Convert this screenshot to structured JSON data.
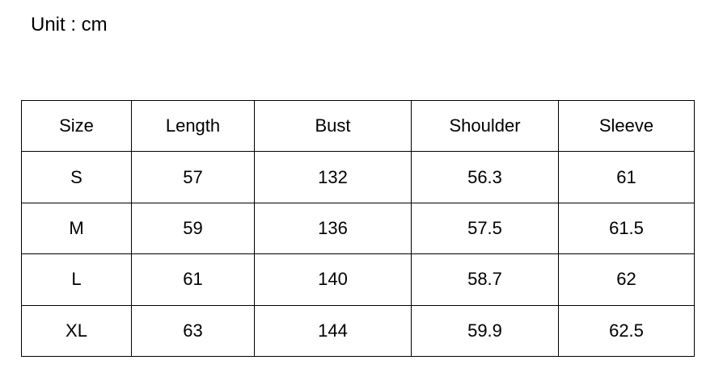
{
  "unit": "Unit : cm",
  "table": {
    "header": [
      "Size",
      "Length",
      "Bust",
      "Shoulder",
      "Sleeve"
    ],
    "rows": [
      [
        "S",
        "57",
        "132",
        "56.3",
        "61"
      ],
      [
        "M",
        "59",
        "136",
        "57.5",
        "61.5"
      ],
      [
        "L",
        "61",
        "140",
        "58.7",
        "62"
      ],
      [
        "XL",
        "63",
        "144",
        "59.9",
        "62.5"
      ]
    ]
  }
}
